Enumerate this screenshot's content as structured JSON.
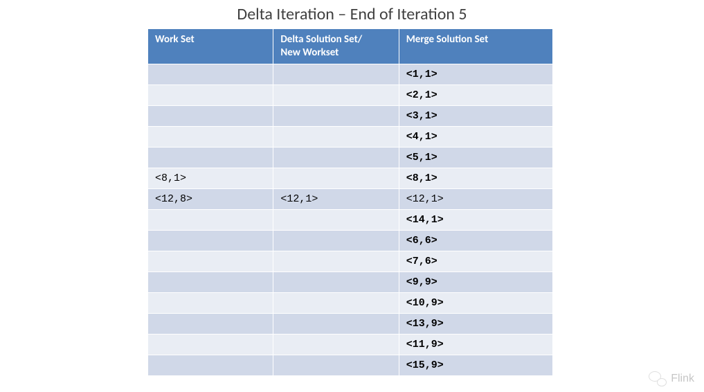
{
  "title": "Delta Iteration – End of Iteration 5",
  "table": {
    "columns": [
      "Work Set",
      "Delta Solution Set/\nNew Workset",
      "Merge Solution Set"
    ],
    "col_widths_pct": [
      31,
      31,
      38
    ],
    "header_bg": "#4f81bd",
    "header_fg": "#ffffff",
    "row_odd_bg": "#d0d8e8",
    "row_even_bg": "#e9edf4",
    "border_color": "#ffffff",
    "cell_font": "Courier New",
    "rows": [
      {
        "cells": [
          "",
          "",
          "<1,1>"
        ],
        "bold": [
          false,
          false,
          true
        ]
      },
      {
        "cells": [
          "",
          "",
          "<2,1>"
        ],
        "bold": [
          false,
          false,
          true
        ]
      },
      {
        "cells": [
          "",
          "",
          "<3,1>"
        ],
        "bold": [
          false,
          false,
          true
        ]
      },
      {
        "cells": [
          "",
          "",
          "<4,1>"
        ],
        "bold": [
          false,
          false,
          true
        ]
      },
      {
        "cells": [
          "",
          "",
          "<5,1>"
        ],
        "bold": [
          false,
          false,
          true
        ]
      },
      {
        "cells": [
          "<8,1>",
          "",
          "<8,1>"
        ],
        "bold": [
          false,
          false,
          true
        ]
      },
      {
        "cells": [
          "<12,8>",
          "<12,1>",
          "<12,1>"
        ],
        "bold": [
          false,
          false,
          false
        ]
      },
      {
        "cells": [
          "",
          "",
          "<14,1>"
        ],
        "bold": [
          false,
          false,
          true
        ]
      },
      {
        "cells": [
          "",
          "",
          "<6,6>"
        ],
        "bold": [
          false,
          false,
          true
        ]
      },
      {
        "cells": [
          "",
          "",
          "<7,6>"
        ],
        "bold": [
          false,
          false,
          true
        ]
      },
      {
        "cells": [
          "",
          "",
          "<9,9>"
        ],
        "bold": [
          false,
          false,
          true
        ]
      },
      {
        "cells": [
          "",
          "",
          "<10,9>"
        ],
        "bold": [
          false,
          false,
          true
        ]
      },
      {
        "cells": [
          "",
          "",
          "<13,9>"
        ],
        "bold": [
          false,
          false,
          true
        ]
      },
      {
        "cells": [
          "",
          "",
          "<11,9>"
        ],
        "bold": [
          false,
          false,
          true
        ]
      },
      {
        "cells": [
          "",
          "",
          "<15,9>"
        ],
        "bold": [
          false,
          false,
          true
        ]
      }
    ]
  },
  "watermark": {
    "label": "Flink",
    "icon": "wechat-icon"
  }
}
